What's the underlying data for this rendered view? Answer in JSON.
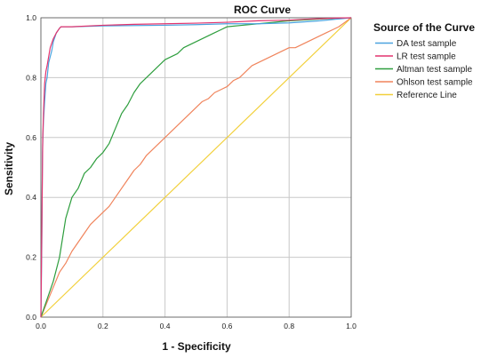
{
  "chart_data": {
    "type": "line",
    "title": "ROC Curve",
    "xlabel": "1 - Specificity",
    "ylabel": "Sensitivity",
    "xlim": [
      0.0,
      1.0
    ],
    "ylim": [
      0.0,
      1.0
    ],
    "x_ticks": [
      "0.0",
      "0.2",
      "0.4",
      "0.6",
      "0.8",
      "1.0"
    ],
    "y_ticks": [
      "0.0",
      "0.2",
      "0.4",
      "0.6",
      "0.8",
      "1.0"
    ],
    "grid": true,
    "legend": {
      "title": "Source of the Curve",
      "placement": "right"
    },
    "series": [
      {
        "name": "DA test sample",
        "color": "#4aa3df",
        "x": [
          0.0,
          0.003,
          0.005,
          0.008,
          0.012,
          0.016,
          0.02,
          0.025,
          0.03,
          0.035,
          0.04,
          0.05,
          0.06,
          0.065,
          0.1,
          0.2,
          0.4,
          0.5,
          0.6,
          0.7,
          0.8,
          0.9,
          0.95,
          1.0
        ],
        "y": [
          0.0,
          0.25,
          0.55,
          0.65,
          0.72,
          0.78,
          0.8,
          0.85,
          0.87,
          0.89,
          0.92,
          0.95,
          0.965,
          0.97,
          0.97,
          0.973,
          0.975,
          0.977,
          0.98,
          0.98,
          0.983,
          0.99,
          0.995,
          1.0
        ]
      },
      {
        "name": "LR test sample",
        "color": "#e3346e",
        "x": [
          0.0,
          0.003,
          0.006,
          0.009,
          0.012,
          0.016,
          0.02,
          0.025,
          0.03,
          0.04,
          0.05,
          0.06,
          0.065,
          0.1,
          0.2,
          0.3,
          0.4,
          0.5,
          0.6,
          0.7,
          0.8,
          0.85,
          0.9,
          0.95,
          1.0
        ],
        "y": [
          0.0,
          0.3,
          0.6,
          0.7,
          0.78,
          0.82,
          0.84,
          0.87,
          0.9,
          0.93,
          0.95,
          0.965,
          0.97,
          0.97,
          0.975,
          0.978,
          0.98,
          0.982,
          0.985,
          0.99,
          0.992,
          0.995,
          0.997,
          0.999,
          1.0
        ]
      },
      {
        "name": "Altman test sample",
        "color": "#2e9e3e",
        "x": [
          0.0,
          0.02,
          0.04,
          0.06,
          0.08,
          0.1,
          0.12,
          0.14,
          0.16,
          0.18,
          0.2,
          0.22,
          0.24,
          0.26,
          0.28,
          0.3,
          0.32,
          0.34,
          0.36,
          0.38,
          0.4,
          0.42,
          0.44,
          0.46,
          0.48,
          0.5,
          0.52,
          0.54,
          0.56,
          0.58,
          0.6,
          0.65,
          0.7,
          0.75,
          0.8,
          0.85,
          0.9,
          0.95,
          1.0
        ],
        "y": [
          0.0,
          0.06,
          0.12,
          0.2,
          0.33,
          0.4,
          0.43,
          0.48,
          0.5,
          0.53,
          0.55,
          0.58,
          0.63,
          0.68,
          0.71,
          0.75,
          0.78,
          0.8,
          0.82,
          0.84,
          0.86,
          0.87,
          0.88,
          0.9,
          0.91,
          0.92,
          0.93,
          0.94,
          0.95,
          0.96,
          0.97,
          0.975,
          0.98,
          0.985,
          0.99,
          0.993,
          0.996,
          0.998,
          1.0
        ]
      },
      {
        "name": "Ohlson test sample",
        "color": "#f0845c",
        "x": [
          0.0,
          0.02,
          0.04,
          0.06,
          0.08,
          0.1,
          0.12,
          0.14,
          0.16,
          0.18,
          0.2,
          0.22,
          0.24,
          0.26,
          0.28,
          0.3,
          0.32,
          0.34,
          0.36,
          0.38,
          0.4,
          0.42,
          0.44,
          0.46,
          0.48,
          0.5,
          0.52,
          0.54,
          0.56,
          0.58,
          0.6,
          0.62,
          0.64,
          0.66,
          0.68,
          0.7,
          0.72,
          0.74,
          0.76,
          0.78,
          0.8,
          0.82,
          0.84,
          0.86,
          0.88,
          0.9,
          0.92,
          0.94,
          0.96,
          0.98,
          1.0
        ],
        "y": [
          0.0,
          0.05,
          0.1,
          0.15,
          0.18,
          0.22,
          0.25,
          0.28,
          0.31,
          0.33,
          0.35,
          0.37,
          0.4,
          0.43,
          0.46,
          0.49,
          0.51,
          0.54,
          0.56,
          0.58,
          0.6,
          0.62,
          0.64,
          0.66,
          0.68,
          0.7,
          0.72,
          0.73,
          0.75,
          0.76,
          0.77,
          0.79,
          0.8,
          0.82,
          0.84,
          0.85,
          0.86,
          0.87,
          0.88,
          0.89,
          0.9,
          0.9,
          0.91,
          0.92,
          0.93,
          0.94,
          0.95,
          0.96,
          0.97,
          0.985,
          1.0
        ]
      },
      {
        "name": "Reference Line",
        "color": "#f2d03b",
        "x": [
          0.0,
          1.0
        ],
        "y": [
          0.0,
          1.0
        ]
      }
    ]
  }
}
